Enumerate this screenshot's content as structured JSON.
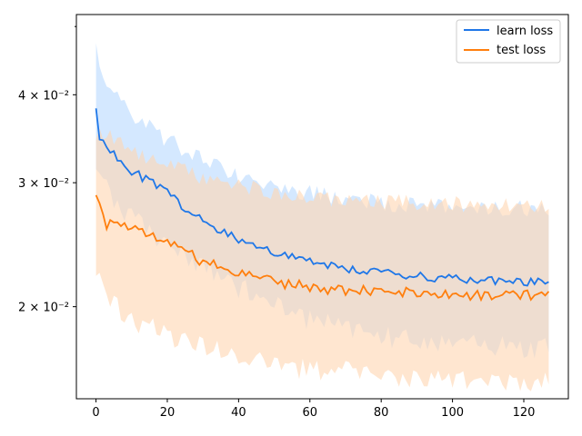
{
  "chart_data": {
    "type": "line",
    "title": "",
    "xlabel": "",
    "ylabel": "",
    "y_scale": "log",
    "xlim": [
      -5.5,
      132.5
    ],
    "ylim": [
      0.0148,
      0.052
    ],
    "x_ticks": [
      0,
      20,
      40,
      60,
      80,
      100,
      120
    ],
    "x_tick_labels": [
      "0",
      "20",
      "40",
      "60",
      "80",
      "100",
      "120"
    ],
    "y_major_ticks": [
      0.02,
      0.03,
      0.04
    ],
    "y_tick_labels": [
      "2 × 10⁻²",
      "3 × 10⁻²",
      "4 × 10⁻²"
    ],
    "y_minor_ticks": [
      0.05
    ],
    "grid": false,
    "legend_position": "top-right",
    "series": [
      {
        "name": "learn loss",
        "color": "#1f77e8",
        "band_color": "#b8d8ff",
        "x_range": [
          0,
          127
        ],
        "mean_anchors": [
          [
            0,
            0.0388
          ],
          [
            1,
            0.035
          ],
          [
            3,
            0.0339
          ],
          [
            6,
            0.0325
          ],
          [
            10,
            0.0312
          ],
          [
            15,
            0.0301
          ],
          [
            20,
            0.029
          ],
          [
            25,
            0.0276
          ],
          [
            30,
            0.0264
          ],
          [
            35,
            0.0256
          ],
          [
            40,
            0.025
          ],
          [
            45,
            0.0244
          ],
          [
            50,
            0.0239
          ],
          [
            55,
            0.0235
          ],
          [
            60,
            0.0232
          ],
          [
            70,
            0.0227
          ],
          [
            80,
            0.0223
          ],
          [
            90,
            0.0221
          ],
          [
            100,
            0.0219
          ],
          [
            110,
            0.0218
          ],
          [
            120,
            0.0217
          ],
          [
            127,
            0.0216
          ]
        ],
        "upper_anchors": [
          [
            0,
            0.0475
          ],
          [
            1,
            0.043
          ],
          [
            5,
            0.0405
          ],
          [
            10,
            0.0375
          ],
          [
            20,
            0.0345
          ],
          [
            30,
            0.0322
          ],
          [
            40,
            0.0307
          ],
          [
            50,
            0.0297
          ],
          [
            60,
            0.029
          ],
          [
            70,
            0.0284
          ],
          [
            80,
            0.0281
          ],
          [
            100,
            0.0277
          ],
          [
            127,
            0.0276
          ]
        ],
        "lower_anchors": [
          [
            0,
            0.0318
          ],
          [
            5,
            0.0285
          ],
          [
            10,
            0.0268
          ],
          [
            20,
            0.0246
          ],
          [
            30,
            0.0228
          ],
          [
            40,
            0.0213
          ],
          [
            50,
            0.0201
          ],
          [
            60,
            0.0192
          ],
          [
            70,
            0.0186
          ],
          [
            80,
            0.0182
          ],
          [
            100,
            0.0177
          ],
          [
            127,
            0.0175
          ]
        ]
      },
      {
        "name": "test loss",
        "color": "#ff7f0e",
        "band_color": "#ffd6b0",
        "x_range": [
          0,
          127
        ],
        "mean_anchors": [
          [
            0,
            0.0284
          ],
          [
            3,
            0.0262
          ],
          [
            6,
            0.0266
          ],
          [
            10,
            0.0259
          ],
          [
            15,
            0.0254
          ],
          [
            20,
            0.025
          ],
          [
            25,
            0.0239
          ],
          [
            30,
            0.0232
          ],
          [
            35,
            0.0228
          ],
          [
            40,
            0.0224
          ],
          [
            45,
            0.022
          ],
          [
            50,
            0.0217
          ],
          [
            55,
            0.0215
          ],
          [
            60,
            0.0213
          ],
          [
            70,
            0.0211
          ],
          [
            80,
            0.021
          ],
          [
            90,
            0.0209
          ],
          [
            100,
            0.0208
          ],
          [
            110,
            0.0208
          ],
          [
            120,
            0.0208
          ],
          [
            127,
            0.0208
          ]
        ],
        "upper_anchors": [
          [
            0,
            0.0355
          ],
          [
            5,
            0.0345
          ],
          [
            10,
            0.033
          ],
          [
            20,
            0.0318
          ],
          [
            30,
            0.0305
          ],
          [
            40,
            0.0298
          ],
          [
            50,
            0.029
          ],
          [
            60,
            0.0285
          ],
          [
            80,
            0.0282
          ],
          [
            100,
            0.028
          ],
          [
            127,
            0.0279
          ]
        ],
        "lower_anchors": [
          [
            0,
            0.0222
          ],
          [
            3,
            0.0205
          ],
          [
            10,
            0.0192
          ],
          [
            20,
            0.0182
          ],
          [
            30,
            0.0175
          ],
          [
            40,
            0.017
          ],
          [
            50,
            0.0166
          ],
          [
            60,
            0.0163
          ],
          [
            80,
            0.016
          ],
          [
            100,
            0.0158
          ],
          [
            127,
            0.0157
          ]
        ]
      }
    ]
  }
}
